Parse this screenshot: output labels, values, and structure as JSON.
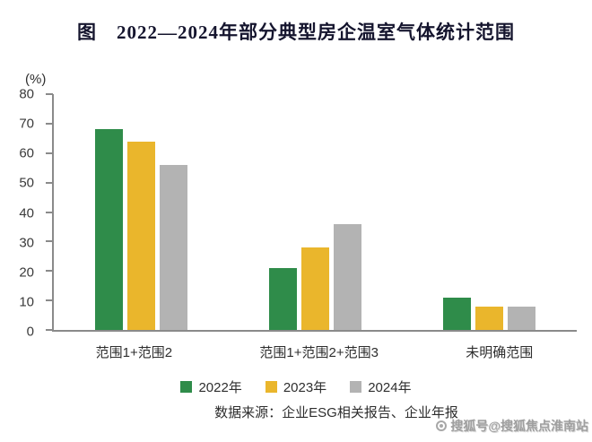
{
  "title": "图　2022—2024年部分典型房企温室气体统计范围",
  "chart_data": {
    "type": "bar",
    "title": "图　2022—2024年部分典型房企温室气体统计范围",
    "ylabel": "(%)",
    "ylim": [
      0,
      80
    ],
    "ytick_step": 10,
    "grid": false,
    "legend_position": "bottom",
    "categories": [
      "范围1+范围2",
      "范围1+范围2+范围3",
      "未明确范围"
    ],
    "series": [
      {
        "name": "2022年",
        "color": "#2f8c4a",
        "values": [
          68,
          21,
          11
        ]
      },
      {
        "name": "2023年",
        "color": "#eab62c",
        "values": [
          64,
          28,
          8
        ]
      },
      {
        "name": "2024年",
        "color": "#b3b3b3",
        "values": [
          56,
          36,
          8
        ]
      }
    ]
  },
  "source": "数据来源：企业ESG相关报告、企业年报",
  "watermark": "搜狐号@搜狐焦点淮南站"
}
